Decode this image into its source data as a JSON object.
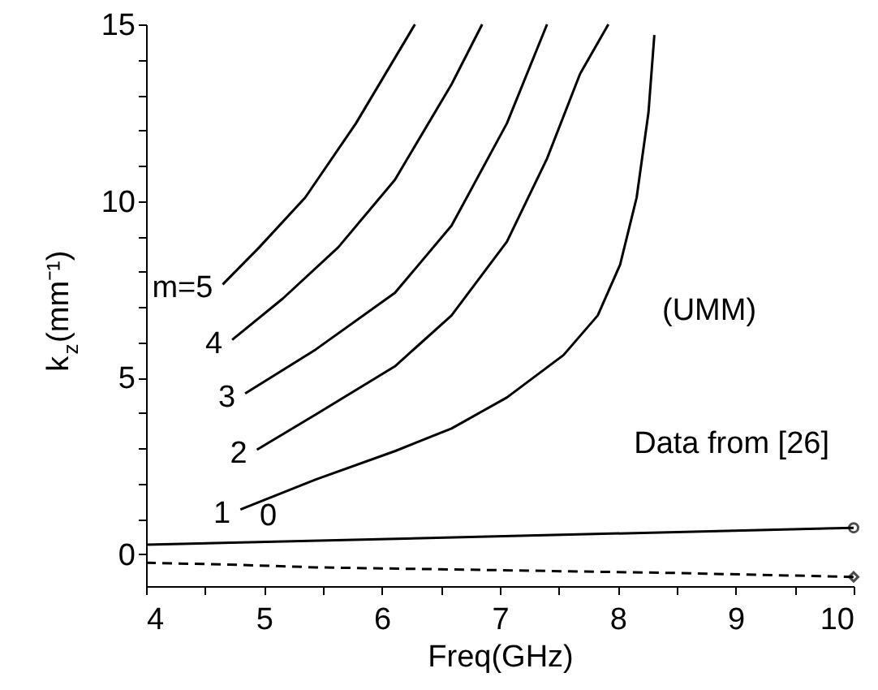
{
  "chart_data": {
    "type": "line",
    "xlabel": "Freq(GHz)",
    "ylabel": "k$_{z}$(mm⁻¹)",
    "xlim": [
      4,
      10
    ],
    "ylim": [
      -0.9,
      15
    ],
    "xticks": [
      4,
      {
        "value": 4.5,
        "label": null
      },
      5,
      {
        "value": 5.5,
        "label": null
      },
      6,
      {
        "value": 6.5,
        "label": null
      },
      7,
      {
        "value": 7.5,
        "label": null
      },
      8,
      {
        "value": 8.5,
        "label": null
      },
      9,
      {
        "value": 9.5,
        "label": null
      },
      10
    ],
    "yticks": [
      0,
      {
        "value": 1,
        "label": null
      },
      {
        "value": 2,
        "label": null
      },
      {
        "value": 3,
        "label": null
      },
      {
        "value": 4,
        "label": null
      },
      5,
      {
        "value": 6,
        "label": null
      },
      {
        "value": 7,
        "label": null
      },
      {
        "value": 8,
        "label": null
      },
      {
        "value": 9,
        "label": null
      },
      10,
      {
        "value": 11,
        "label": null
      },
      {
        "value": 12,
        "label": null
      },
      {
        "value": 13,
        "label": null
      },
      {
        "value": 14,
        "label": null
      },
      15
    ],
    "grid": false,
    "marker": "none",
    "series": [
      {
        "name": "m=5",
        "color": "#000000",
        "x": [
          4.65,
          4.96,
          5.35,
          5.78,
          6.28
        ],
        "values": [
          7.64,
          8.69,
          10.1,
          12.2,
          15.0
        ]
      },
      {
        "name": "4",
        "color": "#000000",
        "x": [
          4.73,
          5.16,
          5.63,
          6.11,
          6.59,
          6.85
        ],
        "values": [
          6.07,
          7.24,
          8.69,
          10.6,
          13.3,
          15.0
        ]
      },
      {
        "name": "3",
        "color": "#000000",
        "x": [
          4.84,
          5.44,
          6.11,
          6.59,
          7.06,
          7.4
        ],
        "values": [
          4.55,
          5.8,
          7.4,
          9.3,
          12.2,
          15.0
        ]
      },
      {
        "name": "2",
        "color": "#000000",
        "x": [
          4.94,
          5.44,
          6.11,
          6.59,
          7.06,
          7.4,
          7.68,
          7.92
        ],
        "values": [
          2.96,
          3.96,
          5.32,
          6.76,
          8.85,
          11.2,
          13.6,
          15.0
        ]
      },
      {
        "name": "1",
        "color": "#000000",
        "x": [
          4.8,
          5.44,
          6.11,
          6.59,
          7.06,
          7.54,
          7.83,
          8.02,
          8.16,
          8.26,
          8.31
        ],
        "values": [
          1.27,
          2.12,
          2.92,
          3.56,
          4.44,
          5.64,
          6.76,
          8.2,
          10.1,
          12.5,
          14.7
        ]
      },
      {
        "name": "0",
        "color": "#000000",
        "x": [
          4,
          10
        ],
        "values": [
          0.27,
          0.75
        ]
      },
      {
        "color": "#000000",
        "line_style": "dashed",
        "x": [
          4,
          4.7,
          5.44,
          7.0,
          8.5,
          10
        ],
        "values": [
          -0.24,
          -0.29,
          -0.37,
          -0.45,
          -0.53,
          -0.64
        ]
      },
      {
        "name": "Data from [26]",
        "type": "scatter",
        "marker": "circle",
        "color": "#000000",
        "x": [
          10
        ],
        "values": [
          0.75
        ]
      },
      {
        "type": "scatter",
        "marker": "diamond",
        "color": "#000000",
        "x": [
          10
        ],
        "values": [
          -0.64
        ]
      }
    ],
    "annotations": [
      "(UMM)"
    ]
  }
}
